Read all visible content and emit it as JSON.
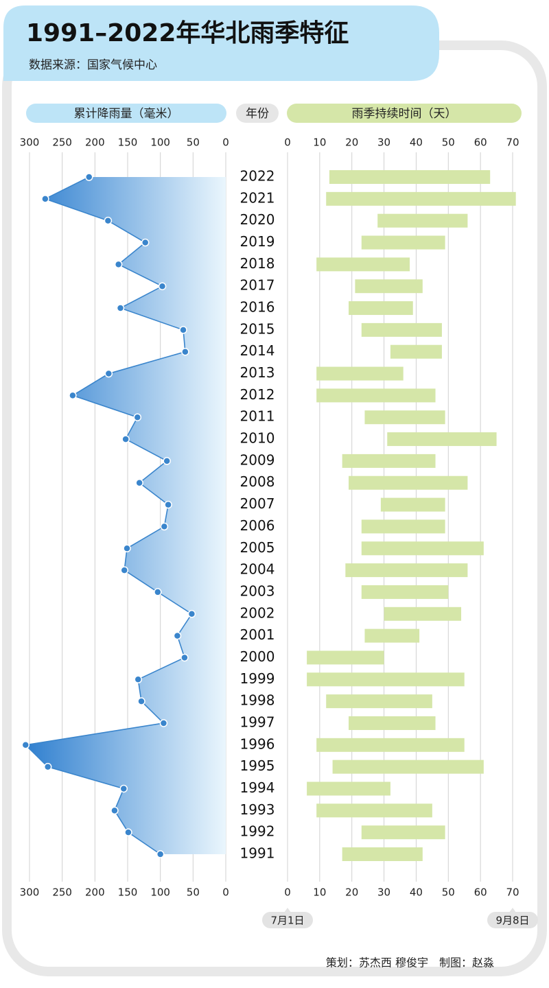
{
  "title": "1991–2022年华北雨季特征",
  "source": "数据来源：国家气候中心",
  "credits": "策划：苏杰西 穆俊宇　制图：赵淼",
  "category_header": "年份",
  "chart_data": [
    {
      "type": "area",
      "title": "累计降雨量（毫米）",
      "color": "#3a85cc",
      "categories": [
        "2022",
        "2021",
        "2020",
        "2019",
        "2018",
        "2017",
        "2016",
        "2015",
        "2014",
        "2013",
        "2012",
        "2011",
        "2010",
        "2009",
        "2008",
        "2007",
        "2006",
        "2005",
        "2004",
        "2003",
        "2002",
        "2001",
        "2000",
        "1999",
        "1998",
        "1997",
        "1996",
        "1995",
        "1994",
        "1993",
        "1992",
        "1991"
      ],
      "values": [
        209,
        276,
        180,
        123,
        164,
        97,
        161,
        65,
        62,
        179,
        234,
        135,
        153,
        90,
        132,
        88,
        94,
        151,
        155,
        104,
        52,
        74,
        63,
        134,
        129,
        95,
        306,
        272,
        156,
        170,
        149,
        100
      ],
      "xlim": [
        300,
        0
      ],
      "xticks": [
        300,
        250,
        200,
        150,
        100,
        50,
        0
      ],
      "grid": true
    },
    {
      "type": "range-bar",
      "title": "雨季持续时间（天）",
      "color": "#d5e6a8",
      "start": [
        13,
        12,
        28,
        23,
        9,
        21,
        19,
        23,
        32,
        9,
        9,
        24,
        31,
        17,
        19,
        29,
        23,
        23,
        18,
        23,
        30,
        24,
        6,
        6,
        12,
        19,
        9,
        14,
        6,
        9,
        23,
        17
      ],
      "end": [
        63,
        71,
        56,
        49,
        38,
        42,
        39,
        48,
        48,
        36,
        46,
        49,
        65,
        46,
        56,
        49,
        49,
        61,
        56,
        50,
        54,
        41,
        30,
        55,
        45,
        46,
        55,
        61,
        32,
        45,
        49,
        42
      ],
      "xlim": [
        0,
        70
      ],
      "xticks": [
        0,
        10,
        20,
        30,
        40,
        50,
        60,
        70
      ],
      "grid": true,
      "annotations": [
        {
          "text": "7月1日",
          "x": 0
        },
        {
          "text": "9月8日",
          "x": 70
        }
      ]
    }
  ]
}
